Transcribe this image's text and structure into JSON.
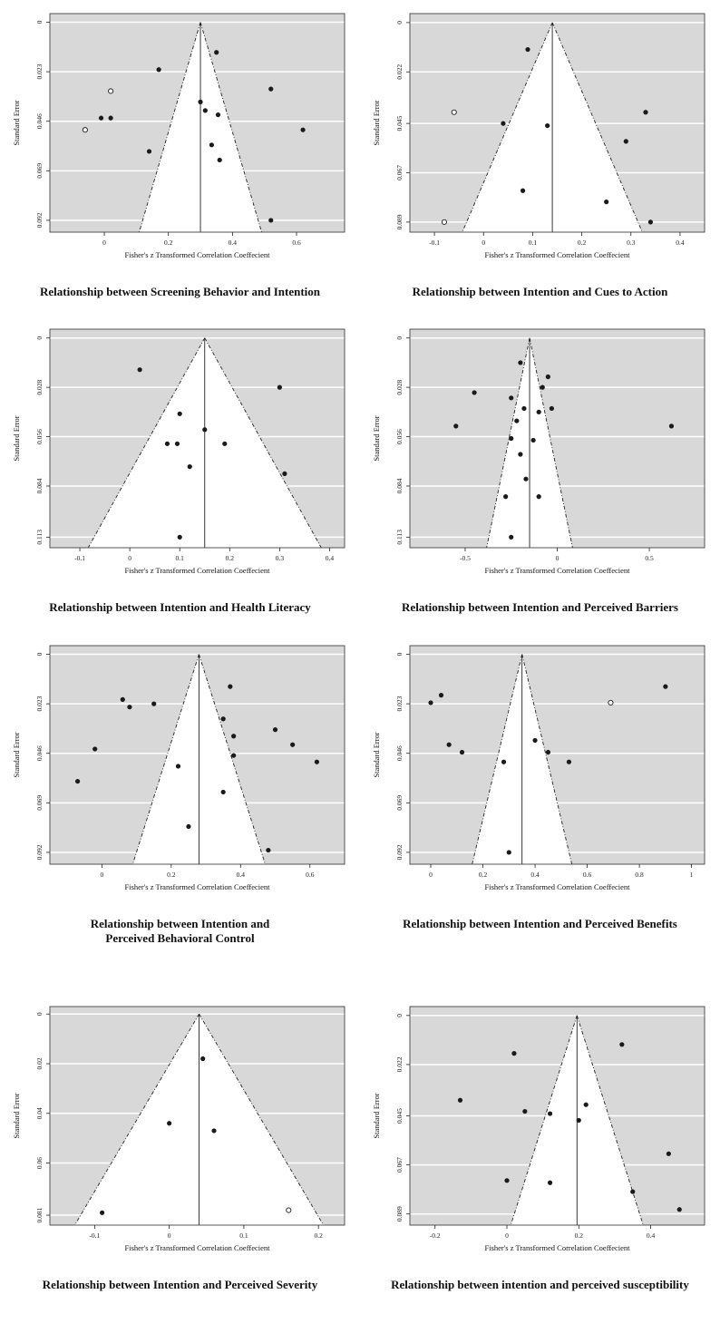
{
  "page": {
    "background": "#ffffff"
  },
  "style": {
    "panel_bg": "#d8d8d8",
    "panel_border": "#444444",
    "funnel_fill": "#ffffff",
    "grid_color": "#ffffff",
    "point_color": "#1a1a1a",
    "line_color": "#222222",
    "text_color": "#222222"
  },
  "chart_data": [
    {
      "type": "scatter",
      "title": "Relationship between Screening Behavior and Intention",
      "xlabel": "Fisher's z Transformed Correlation Coeffecient",
      "ylabel": "Standard Error",
      "x_ticks": [
        0,
        0.2,
        0.4,
        0.6
      ],
      "y_ticks": [
        0,
        0.023,
        0.046,
        0.069,
        0.092
      ],
      "xlim": [
        -0.17,
        0.75
      ],
      "ylim": [
        -0.004,
        0.0975
      ],
      "center": 0.3,
      "points": [
        {
          "x": 0.17,
          "se": 0.022
        },
        {
          "x": 0.35,
          "se": 0.014
        },
        {
          "x": 0.02,
          "se": 0.032,
          "open": true
        },
        {
          "x": 0.52,
          "se": 0.031
        },
        {
          "x": 0.3,
          "se": 0.037
        },
        {
          "x": 0.315,
          "se": 0.041
        },
        {
          "x": -0.01,
          "se": 0.0445
        },
        {
          "x": 0.02,
          "se": 0.0445
        },
        {
          "x": -0.06,
          "se": 0.05,
          "open": true
        },
        {
          "x": 0.355,
          "se": 0.043
        },
        {
          "x": 0.62,
          "se": 0.05
        },
        {
          "x": 0.14,
          "se": 0.06
        },
        {
          "x": 0.335,
          "se": 0.057
        },
        {
          "x": 0.36,
          "se": 0.064
        },
        {
          "x": 0.52,
          "se": 0.092
        }
      ]
    },
    {
      "type": "scatter",
      "title": "Relationship between Intention and Cues to Action",
      "xlabel": "Fisher's z Transformed Correlation Coeffecient",
      "ylabel": "Standard Error",
      "x_ticks": [
        -0.1,
        0,
        0.1,
        0.2,
        0.3,
        0.4
      ],
      "y_ticks": [
        0,
        0.022,
        0.045,
        0.067,
        0.089
      ],
      "xlim": [
        -0.15,
        0.45
      ],
      "ylim": [
        -0.004,
        0.0935
      ],
      "center": 0.14,
      "points": [
        {
          "x": 0.09,
          "se": 0.012
        },
        {
          "x": -0.06,
          "se": 0.04,
          "open": true
        },
        {
          "x": 0.33,
          "se": 0.04
        },
        {
          "x": 0.04,
          "se": 0.045
        },
        {
          "x": 0.13,
          "se": 0.046
        },
        {
          "x": 0.29,
          "se": 0.053
        },
        {
          "x": 0.08,
          "se": 0.075
        },
        {
          "x": 0.25,
          "se": 0.08
        },
        {
          "x": -0.08,
          "se": 0.089,
          "open": true
        },
        {
          "x": 0.34,
          "se": 0.089
        }
      ]
    },
    {
      "type": "scatter",
      "title": "Relationship between Intention and Health Literacy",
      "xlabel": "Fisher's z Transformed Correlation Coeffecient",
      "ylabel": "Standard Error",
      "x_ticks": [
        -0.1,
        0,
        0.1,
        0.2,
        0.3,
        0.4
      ],
      "y_ticks": [
        0,
        0.028,
        0.056,
        0.084,
        0.113
      ],
      "xlim": [
        -0.16,
        0.43
      ],
      "ylim": [
        -0.005,
        0.119
      ],
      "center": 0.15,
      "points": [
        {
          "x": 0.02,
          "se": 0.018
        },
        {
          "x": 0.3,
          "se": 0.028
        },
        {
          "x": 0.1,
          "se": 0.043
        },
        {
          "x": 0.15,
          "se": 0.052
        },
        {
          "x": 0.075,
          "se": 0.06
        },
        {
          "x": 0.095,
          "se": 0.06
        },
        {
          "x": 0.19,
          "se": 0.06
        },
        {
          "x": 0.12,
          "se": 0.073
        },
        {
          "x": 0.31,
          "se": 0.077
        },
        {
          "x": 0.1,
          "se": 0.113
        }
      ]
    },
    {
      "type": "scatter",
      "title": "Relationship between Intention and Perceived Barriers",
      "xlabel": "Fisher's z Transformed Correlation Coeffecient",
      "ylabel": "Standard Error",
      "x_ticks": [
        -0.5,
        0,
        0.5
      ],
      "y_ticks": [
        0,
        0.028,
        0.056,
        0.084,
        0.113
      ],
      "xlim": [
        -0.8,
        0.8
      ],
      "ylim": [
        -0.005,
        0.119
      ],
      "center": -0.15,
      "points": [
        {
          "x": -0.2,
          "se": 0.014
        },
        {
          "x": -0.05,
          "se": 0.022
        },
        {
          "x": -0.08,
          "se": 0.028
        },
        {
          "x": -0.45,
          "se": 0.031
        },
        {
          "x": -0.25,
          "se": 0.034
        },
        {
          "x": -0.18,
          "se": 0.04
        },
        {
          "x": -0.1,
          "se": 0.042
        },
        {
          "x": -0.03,
          "se": 0.04
        },
        {
          "x": -0.55,
          "se": 0.05
        },
        {
          "x": -0.22,
          "se": 0.047
        },
        {
          "x": 0.62,
          "se": 0.05
        },
        {
          "x": -0.25,
          "se": 0.057
        },
        {
          "x": -0.13,
          "se": 0.058
        },
        {
          "x": -0.2,
          "se": 0.066
        },
        {
          "x": -0.17,
          "se": 0.08
        },
        {
          "x": -0.28,
          "se": 0.09
        },
        {
          "x": -0.1,
          "se": 0.09
        },
        {
          "x": -0.25,
          "se": 0.113
        }
      ]
    },
    {
      "type": "scatter",
      "title": "Relationship between Intention and\nPerceived Behavioral Control",
      "xlabel": "Fisher's z Transformed Correlation Coeffecient",
      "ylabel": "Standard Error",
      "x_ticks": [
        0,
        0.2,
        0.4,
        0.6
      ],
      "y_ticks": [
        0,
        0.023,
        0.046,
        0.069,
        0.092
      ],
      "xlim": [
        -0.15,
        0.7
      ],
      "ylim": [
        -0.004,
        0.0975
      ],
      "center": 0.28,
      "points": [
        {
          "x": 0.37,
          "se": 0.015
        },
        {
          "x": 0.06,
          "se": 0.021
        },
        {
          "x": 0.08,
          "se": 0.0245
        },
        {
          "x": 0.15,
          "se": 0.023
        },
        {
          "x": 0.35,
          "se": 0.03
        },
        {
          "x": 0.5,
          "se": 0.035
        },
        {
          "x": 0.38,
          "se": 0.038
        },
        {
          "x": -0.02,
          "se": 0.044
        },
        {
          "x": 0.55,
          "se": 0.042
        },
        {
          "x": 0.38,
          "se": 0.047
        },
        {
          "x": 0.62,
          "se": 0.05
        },
        {
          "x": 0.22,
          "se": 0.052
        },
        {
          "x": -0.07,
          "se": 0.059
        },
        {
          "x": 0.35,
          "se": 0.064
        },
        {
          "x": 0.25,
          "se": 0.08
        },
        {
          "x": 0.48,
          "se": 0.091
        }
      ]
    },
    {
      "type": "scatter",
      "title": "Relationship between Intention and Perceived Benefits",
      "xlabel": "Fisher's z Transformed Correlation Coeffecient",
      "ylabel": "Standard Error",
      "x_ticks": [
        0,
        0.2,
        0.4,
        0.6,
        0.8,
        1
      ],
      "y_ticks": [
        0,
        0.023,
        0.046,
        0.069,
        0.092
      ],
      "xlim": [
        -0.08,
        1.05
      ],
      "ylim": [
        -0.004,
        0.0975
      ],
      "center": 0.35,
      "points": [
        {
          "x": 0.9,
          "se": 0.015
        },
        {
          "x": 0.04,
          "se": 0.019
        },
        {
          "x": 0.0,
          "se": 0.0225
        },
        {
          "x": 0.69,
          "se": 0.0225,
          "open": true
        },
        {
          "x": 0.07,
          "se": 0.042
        },
        {
          "x": 0.12,
          "se": 0.0455
        },
        {
          "x": 0.4,
          "se": 0.04
        },
        {
          "x": 0.45,
          "se": 0.0455
        },
        {
          "x": 0.28,
          "se": 0.05
        },
        {
          "x": 0.53,
          "se": 0.05
        },
        {
          "x": 0.3,
          "se": 0.092
        }
      ]
    },
    {
      "type": "scatter",
      "title": "Relationship between Intention and Perceived Severity",
      "xlabel": "Fisher's z Transformed Correlation Coeffecient",
      "ylabel": "Standard Error",
      "x_ticks": [
        -0.1,
        0,
        0.1,
        0.2
      ],
      "y_ticks": [
        0,
        0.02,
        0.04,
        0.06,
        0.081
      ],
      "xlim": [
        -0.16,
        0.235
      ],
      "ylim": [
        -0.003,
        0.085
      ],
      "center": 0.04,
      "points": [
        {
          "x": 0.045,
          "se": 0.018
        },
        {
          "x": 0.0,
          "se": 0.044
        },
        {
          "x": 0.06,
          "se": 0.047
        },
        {
          "x": -0.09,
          "se": 0.08
        },
        {
          "x": 0.16,
          "se": 0.079,
          "open": true
        }
      ]
    },
    {
      "type": "scatter",
      "title": "Relationship between intention and perceived susceptibility",
      "xlabel": "Fisher's z Transformed Correlation Coeffecient",
      "ylabel": "Standard Error",
      "x_ticks": [
        -0.2,
        0,
        0.2,
        0.4
      ],
      "y_ticks": [
        0,
        0.022,
        0.045,
        0.067,
        0.089
      ],
      "xlim": [
        -0.27,
        0.55
      ],
      "ylim": [
        -0.004,
        0.094
      ],
      "center": 0.195,
      "points": [
        {
          "x": 0.32,
          "se": 0.013
        },
        {
          "x": 0.02,
          "se": 0.017
        },
        {
          "x": -0.13,
          "se": 0.038
        },
        {
          "x": 0.05,
          "se": 0.043
        },
        {
          "x": 0.22,
          "se": 0.04
        },
        {
          "x": 0.2,
          "se": 0.047
        },
        {
          "x": 0.12,
          "se": 0.044
        },
        {
          "x": 0.45,
          "se": 0.062
        },
        {
          "x": 0.0,
          "se": 0.074
        },
        {
          "x": 0.12,
          "se": 0.075
        },
        {
          "x": 0.35,
          "se": 0.079
        },
        {
          "x": 0.48,
          "se": 0.087
        }
      ]
    }
  ]
}
